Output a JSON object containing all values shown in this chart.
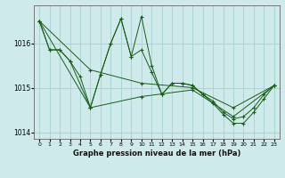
{
  "title": "Graphe pression niveau de la mer (hPa)",
  "background_color": "#ceeaea",
  "grid_color": "#aad4d4",
  "line_color": "#1a5c1a",
  "xlim": [
    -0.5,
    23.5
  ],
  "ylim": [
    1013.85,
    1016.85
  ],
  "yticks": [
    1014,
    1015,
    1016
  ],
  "xtick_labels": [
    "0",
    "1",
    "2",
    "3",
    "4",
    "5",
    "6",
    "7",
    "8",
    "9",
    "10",
    "11",
    "12",
    "13",
    "14",
    "15",
    "16",
    "17",
    "18",
    "19",
    "20",
    "21",
    "22",
    "23"
  ],
  "xticks": [
    0,
    1,
    2,
    3,
    4,
    5,
    6,
    7,
    8,
    9,
    10,
    11,
    12,
    13,
    14,
    15,
    16,
    17,
    18,
    19,
    20,
    21,
    22,
    23
  ],
  "series": [
    {
      "x": [
        0,
        1,
        2,
        3,
        4,
        5,
        6,
        7,
        8,
        9,
        10,
        11,
        12,
        13,
        14,
        15,
        16,
        17,
        18,
        19,
        20,
        21,
        22,
        23
      ],
      "y": [
        1016.5,
        1015.85,
        1015.85,
        1015.6,
        1015.25,
        1014.55,
        1015.3,
        1016.0,
        1016.55,
        1015.7,
        1016.6,
        1015.5,
        1014.85,
        1015.1,
        1015.1,
        1015.05,
        1014.85,
        1014.7,
        1014.45,
        1014.3,
        1014.35,
        1014.55,
        1014.85,
        1015.05
      ]
    },
    {
      "x": [
        0,
        1,
        2,
        3,
        5,
        6,
        7,
        8,
        9,
        10,
        11,
        12,
        13,
        14,
        15,
        16,
        17,
        18,
        19,
        20,
        21,
        22,
        23
      ],
      "y": [
        1016.5,
        1015.85,
        1015.85,
        1015.6,
        1014.55,
        1015.3,
        1016.0,
        1016.55,
        1015.7,
        1015.85,
        1015.35,
        1014.85,
        1015.1,
        1015.1,
        1015.05,
        1014.85,
        1014.65,
        1014.4,
        1014.2,
        1014.2,
        1014.45,
        1014.75,
        1015.05
      ]
    },
    {
      "x": [
        0,
        5,
        10,
        15,
        19,
        23
      ],
      "y": [
        1016.5,
        1015.4,
        1015.1,
        1015.0,
        1014.55,
        1015.05
      ]
    },
    {
      "x": [
        0,
        5,
        10,
        15,
        19,
        23
      ],
      "y": [
        1016.5,
        1014.55,
        1014.8,
        1014.95,
        1014.35,
        1015.05
      ]
    }
  ]
}
